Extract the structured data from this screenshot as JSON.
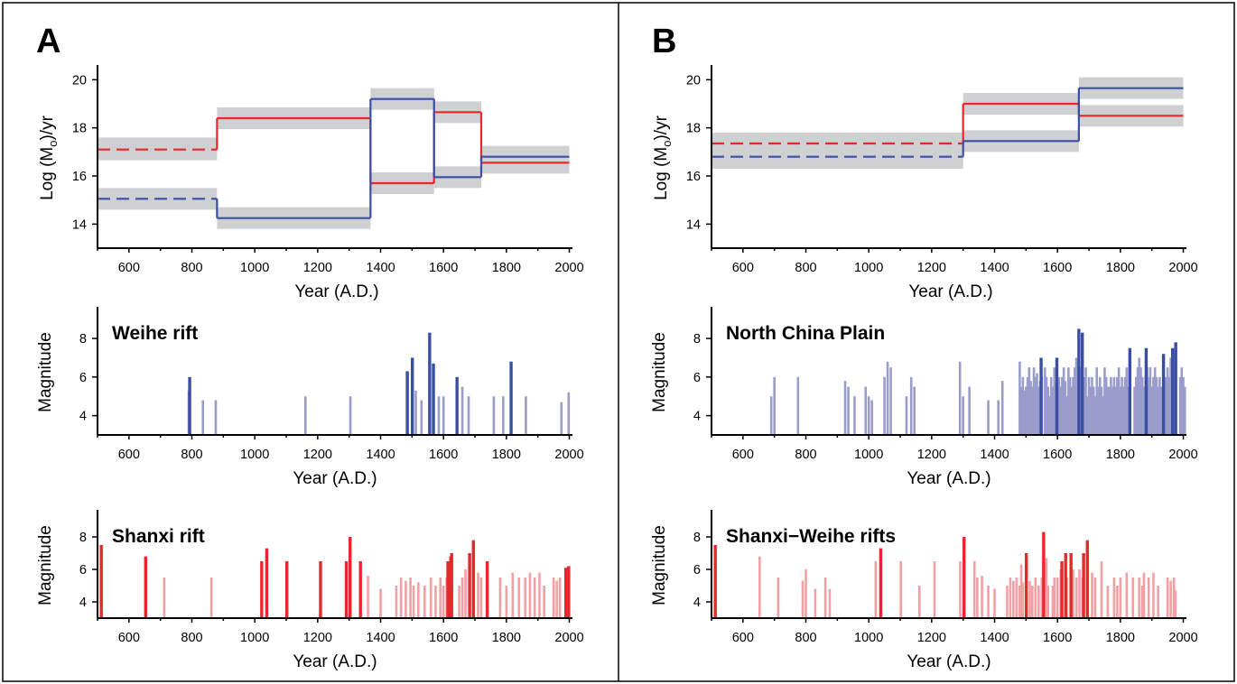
{
  "panels": [
    {
      "letter": "A"
    },
    {
      "letter": "B"
    }
  ],
  "colors": {
    "red": "#e8262b",
    "blue": "#3a4ea3",
    "band": "#cfd0d2",
    "blue_light": "#9a9dcc",
    "red_light": "#f2a0a3",
    "axis": "#000000"
  },
  "chart_data": [
    {
      "panel": "A",
      "type": "line",
      "subtype": "step",
      "xlabel": "Year (A.D.)",
      "ylabel": "Log (Mo)/yr",
      "ylabel_parts": {
        "pre": "Log (M",
        "sub": "o",
        "post": ")/yr"
      },
      "xlim": [
        500,
        2010
      ],
      "ylim": [
        13.0,
        20.5
      ],
      "xticks": [
        600,
        800,
        1000,
        1200,
        1400,
        1600,
        1800,
        2000
      ],
      "yticks": [
        14,
        16,
        18,
        20
      ],
      "series": [
        {
          "color": "red",
          "segments": [
            {
              "x0": 500,
              "x1": 880,
              "y": 17.1,
              "band": [
                16.65,
                17.6
              ],
              "dashed": true
            },
            {
              "x0": 880,
              "x1": 1368,
              "y": 18.4,
              "band": [
                17.95,
                18.85
              ]
            },
            {
              "x0": 1368,
              "x1": 1570,
              "y": 15.7,
              "band": [
                15.25,
                16.15
              ]
            },
            {
              "x0": 1570,
              "x1": 1720,
              "y": 18.65,
              "band": [
                18.2,
                19.1
              ]
            },
            {
              "x0": 1720,
              "x1": 2000,
              "y": 16.55,
              "band": [
                16.1,
                17.0
              ]
            }
          ]
        },
        {
          "color": "blue",
          "segments": [
            {
              "x0": 500,
              "x1": 880,
              "y": 15.05,
              "band": [
                14.6,
                15.5
              ],
              "dashed": true
            },
            {
              "x0": 880,
              "x1": 1368,
              "y": 14.25,
              "band": [
                13.8,
                14.7
              ]
            },
            {
              "x0": 1368,
              "x1": 1570,
              "y": 19.2,
              "band": [
                18.75,
                19.65
              ]
            },
            {
              "x0": 1570,
              "x1": 1720,
              "y": 15.95,
              "band": [
                15.5,
                16.4
              ]
            },
            {
              "x0": 1720,
              "x1": 2000,
              "y": 16.8,
              "band": [
                16.35,
                17.25
              ]
            }
          ]
        }
      ]
    },
    {
      "panel": "A",
      "type": "bar",
      "title": "Weihe rift",
      "xlabel": "Year (A.D.)",
      "ylabel": "Magnitude",
      "xlim": [
        500,
        2010
      ],
      "ylim": [
        3.0,
        9.5
      ],
      "xticks": [
        600,
        800,
        1000,
        1200,
        1400,
        1600,
        1800,
        2000
      ],
      "yticks": [
        4,
        6,
        8
      ],
      "series": [
        {
          "name": "light",
          "color": "blue_light",
          "x": [
            790,
            835,
            876,
            1161,
            1304,
            1512,
            1530,
            1585,
            1600,
            1660,
            1680,
            1760,
            1790,
            1862,
            1975,
            1998
          ],
          "values": [
            5.3,
            4.8,
            4.8,
            5.0,
            5.0,
            5.3,
            4.8,
            5.0,
            5.0,
            5.5,
            5.0,
            5.0,
            5.0,
            5.0,
            4.7,
            5.2
          ]
        },
        {
          "name": "strong",
          "color": "blue",
          "x": [
            793,
            1485,
            1501,
            1556,
            1568,
            1643,
            1815
          ],
          "values": [
            6.0,
            6.3,
            7.0,
            8.3,
            6.7,
            6.0,
            6.8
          ]
        }
      ]
    },
    {
      "panel": "A",
      "type": "bar",
      "title": "Shanxi rift",
      "xlabel": "Year (A.D.)",
      "ylabel": "Magnitude",
      "xlim": [
        500,
        2010
      ],
      "ylim": [
        3.0,
        9.5
      ],
      "xticks": [
        600,
        800,
        1000,
        1200,
        1400,
        1600,
        1800,
        2000
      ],
      "yticks": [
        4,
        6,
        8
      ],
      "series": [
        {
          "name": "light",
          "color": "red_light",
          "x": [
            712,
            862,
            1335,
            1360,
            1400,
            1450,
            1465,
            1480,
            1495,
            1505,
            1520,
            1540,
            1560,
            1575,
            1590,
            1600,
            1610,
            1650,
            1660,
            1670,
            1710,
            1720,
            1740,
            1780,
            1800,
            1820,
            1840,
            1860,
            1875,
            1890,
            1905,
            1920,
            1950,
            1960,
            1970
          ],
          "values": [
            5.5,
            5.5,
            5.5,
            5.6,
            4.8,
            5.0,
            5.5,
            5.3,
            5.5,
            5.0,
            5.2,
            5.0,
            5.5,
            5.0,
            5.5,
            5.0,
            5.5,
            5.0,
            5.5,
            6.0,
            5.8,
            5.5,
            5.0,
            5.5,
            5.0,
            5.8,
            5.5,
            5.5,
            5.8,
            5.5,
            5.8,
            5.0,
            5.5,
            5.3,
            5.5
          ]
        },
        {
          "name": "strong",
          "color": "red",
          "x": [
            512,
            653,
            1022,
            1038,
            1102,
            1209,
            1291,
            1303,
            1336,
            1614,
            1623,
            1626,
            1683,
            1695,
            1739,
            1989,
            1998
          ],
          "values": [
            7.5,
            6.8,
            6.5,
            7.3,
            6.5,
            6.5,
            6.5,
            8.0,
            6.5,
            6.5,
            6.8,
            7.0,
            7.0,
            7.8,
            6.5,
            6.1,
            6.2
          ]
        }
      ]
    },
    {
      "panel": "B",
      "type": "line",
      "subtype": "step",
      "xlabel": "Year (A.D.)",
      "ylabel": "Log (Mo)/yr",
      "ylabel_parts": {
        "pre": "Log (M",
        "sub": "o",
        "post": ")/yr"
      },
      "xlim": [
        500,
        2010
      ],
      "ylim": [
        13.0,
        20.5
      ],
      "xticks": [
        600,
        800,
        1000,
        1200,
        1400,
        1600,
        1800,
        2000
      ],
      "yticks": [
        14,
        16,
        18,
        20
      ],
      "series": [
        {
          "color": "red",
          "segments": [
            {
              "x0": 500,
              "x1": 1300,
              "y": 17.35,
              "band": [
                16.3,
                17.8
              ],
              "dashed": true
            },
            {
              "x0": 1300,
              "x1": 1668,
              "y": 19.0,
              "band": [
                18.55,
                19.45
              ]
            },
            {
              "x0": 1668,
              "x1": 2000,
              "y": 18.5,
              "band": [
                18.05,
                18.95
              ]
            }
          ]
        },
        {
          "color": "blue",
          "segments": [
            {
              "x0": 500,
              "x1": 1300,
              "y": 16.8,
              "band": [
                16.3,
                17.8
              ],
              "dashed": true
            },
            {
              "x0": 1300,
              "x1": 1668,
              "y": 17.45,
              "band": [
                17.0,
                17.9
              ]
            },
            {
              "x0": 1668,
              "x1": 2000,
              "y": 19.65,
              "band": [
                19.2,
                20.1
              ]
            }
          ]
        }
      ]
    },
    {
      "panel": "B",
      "type": "bar",
      "title": "North China Plain",
      "xlabel": "Year (A.D.)",
      "ylabel": "Magnitude",
      "xlim": [
        500,
        2010
      ],
      "ylim": [
        3.0,
        9.5
      ],
      "xticks": [
        600,
        800,
        1000,
        1200,
        1400,
        1600,
        1800,
        2000
      ],
      "yticks": [
        4,
        6,
        8
      ],
      "series": [
        {
          "name": "light",
          "color": "blue_light",
          "x": [
            690,
            700,
            775,
            925,
            935,
            955,
            990,
            1000,
            1010,
            1050,
            1060,
            1070,
            1120,
            1135,
            1145,
            1290,
            1300,
            1320,
            1380,
            1412,
            1425,
            1480,
            1485,
            1490,
            1495,
            1500,
            1505,
            1510,
            1515,
            1520,
            1525,
            1530,
            1535,
            1540,
            1545,
            1550,
            1560,
            1565,
            1570,
            1575,
            1580,
            1585,
            1590,
            1595,
            1600,
            1605,
            1610,
            1615,
            1620,
            1625,
            1630,
            1635,
            1640,
            1645,
            1650,
            1655,
            1660,
            1675,
            1680,
            1685,
            1690,
            1695,
            1700,
            1705,
            1710,
            1715,
            1720,
            1725,
            1730,
            1735,
            1740,
            1745,
            1750,
            1755,
            1760,
            1765,
            1770,
            1775,
            1780,
            1785,
            1790,
            1795,
            1800,
            1805,
            1810,
            1815,
            1820,
            1825,
            1830,
            1845,
            1850,
            1855,
            1860,
            1865,
            1870,
            1875,
            1880,
            1885,
            1890,
            1895,
            1900,
            1905,
            1910,
            1915,
            1920,
            1925,
            1930,
            1945,
            1950,
            1955,
            1960,
            1965,
            1990,
            1995,
            2000,
            2005
          ],
          "values": [
            5.0,
            6.0,
            6.0,
            5.8,
            5.5,
            5.0,
            5.5,
            5.0,
            4.8,
            6.0,
            6.8,
            6.5,
            5.0,
            6.0,
            5.5,
            6.8,
            5.0,
            5.5,
            4.8,
            4.8,
            5.8,
            6.8,
            5.5,
            6.0,
            5.3,
            5.5,
            6.0,
            6.5,
            5.8,
            5.5,
            6.5,
            6.0,
            6.2,
            5.5,
            5.8,
            6.0,
            6.5,
            6.0,
            5.5,
            5.0,
            6.0,
            5.5,
            6.5,
            6.0,
            5.8,
            6.0,
            5.5,
            6.0,
            6.5,
            5.8,
            5.0,
            6.5,
            6.0,
            5.5,
            6.0,
            6.5,
            7.0,
            6.5,
            5.5,
            6.0,
            6.5,
            5.0,
            6.0,
            5.5,
            6.0,
            5.5,
            5.0,
            6.5,
            5.5,
            6.0,
            5.5,
            5.0,
            6.5,
            6.0,
            5.5,
            5.5,
            6.0,
            5.5,
            6.0,
            5.5,
            6.0,
            6.5,
            5.5,
            6.0,
            5.5,
            6.0,
            6.5,
            5.5,
            6.0,
            5.5,
            6.0,
            6.5,
            7.0,
            6.5,
            6.0,
            5.5,
            6.0,
            6.5,
            6.0,
            6.5,
            5.5,
            6.0,
            6.5,
            6.0,
            5.5,
            6.0,
            5.5,
            6.0,
            6.5,
            6.0,
            7.0,
            6.5,
            6.0,
            6.5,
            6.0,
            5.5
          ]
        },
        {
          "name": "strong",
          "color": "blue",
          "x": [
            1548,
            1598,
            1668,
            1679,
            1830,
            1882,
            1937,
            1966,
            1976
          ],
          "values": [
            7.0,
            7.0,
            8.5,
            8.3,
            7.5,
            7.5,
            7.2,
            7.5,
            7.8
          ]
        }
      ]
    },
    {
      "panel": "B",
      "type": "bar",
      "title": "Shanxi−Weihe rifts",
      "xlabel": "Year (A.D.)",
      "ylabel": "Magnitude",
      "xlim": [
        500,
        2010
      ],
      "ylim": [
        3.0,
        9.5
      ],
      "xticks": [
        600,
        800,
        1000,
        1200,
        1400,
        1600,
        1800,
        2000
      ],
      "yticks": [
        4,
        6,
        8
      ],
      "series": [
        {
          "name": "light",
          "color": "red_light",
          "x": [
            653,
            712,
            790,
            800,
            830,
            862,
            876,
            1022,
            1102,
            1161,
            1209,
            1291,
            1336,
            1345,
            1360,
            1380,
            1400,
            1440,
            1450,
            1460,
            1470,
            1480,
            1485,
            1490,
            1512,
            1520,
            1530,
            1540,
            1550,
            1565,
            1570,
            1585,
            1590,
            1600,
            1610,
            1630,
            1650,
            1660,
            1670,
            1680,
            1710,
            1720,
            1740,
            1760,
            1780,
            1790,
            1800,
            1820,
            1840,
            1860,
            1870,
            1875,
            1890,
            1905,
            1920,
            1950,
            1960,
            1970,
            1975
          ],
          "values": [
            6.8,
            5.5,
            5.3,
            6.0,
            4.8,
            5.5,
            4.8,
            6.5,
            6.5,
            5.0,
            6.5,
            6.5,
            6.5,
            5.5,
            5.6,
            5.0,
            4.8,
            5.0,
            5.5,
            5.3,
            5.5,
            5.0,
            6.3,
            5.2,
            5.3,
            5.0,
            5.5,
            5.0,
            5.5,
            6.7,
            5.0,
            5.0,
            5.5,
            5.5,
            6.0,
            5.5,
            6.0,
            5.5,
            6.0,
            5.5,
            5.8,
            5.5,
            6.5,
            5.0,
            5.5,
            5.0,
            5.5,
            5.8,
            5.5,
            5.5,
            5.0,
            5.8,
            5.5,
            5.8,
            5.0,
            5.5,
            5.3,
            5.5,
            4.7
          ]
        },
        {
          "name": "strong",
          "color": "red",
          "x": [
            512,
            1038,
            1303,
            1501,
            1556,
            1614,
            1626,
            1643,
            1683,
            1695
          ],
          "values": [
            7.5,
            7.3,
            8.0,
            7.0,
            8.3,
            6.5,
            7.0,
            7.0,
            7.0,
            7.8
          ]
        }
      ]
    }
  ]
}
